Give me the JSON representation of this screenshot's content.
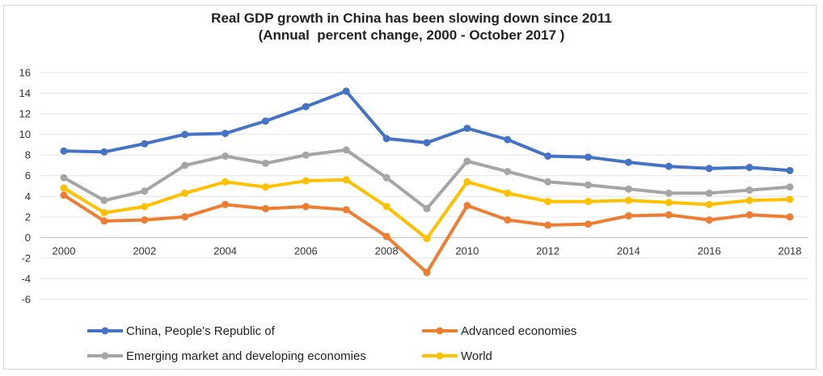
{
  "chart_data": {
    "type": "line",
    "title": "Real GDP growth in China has been slowing down since 2011",
    "subtitle": "(Annual  percent change, 2000 - October 2017 )",
    "xlabel": "",
    "ylabel": "",
    "x": [
      2000,
      2001,
      2002,
      2003,
      2004,
      2005,
      2006,
      2007,
      2008,
      2009,
      2010,
      2011,
      2012,
      2013,
      2014,
      2015,
      2016,
      2017,
      2018
    ],
    "x_tick_labels": [
      "2000",
      "2002",
      "2004",
      "2006",
      "2008",
      "2010",
      "2012",
      "2014",
      "2016",
      "2018"
    ],
    "ylim": [
      -6,
      16
    ],
    "y_tick_labels": [
      "16",
      "14",
      "12",
      "10",
      "8",
      "6",
      "4",
      "2",
      "0",
      "-2",
      "-4",
      "-6"
    ],
    "grid": true,
    "legend_position": "bottom",
    "series": [
      {
        "name": "China, People's Republic of",
        "color": "#4472C4",
        "values": [
          8.4,
          8.3,
          9.1,
          10.0,
          10.1,
          11.3,
          12.7,
          14.2,
          9.6,
          9.2,
          10.6,
          9.5,
          7.9,
          7.8,
          7.3,
          6.9,
          6.7,
          6.8,
          6.5
        ]
      },
      {
        "name": "Advanced economies",
        "color": "#ED7D31",
        "values": [
          4.1,
          1.6,
          1.7,
          2.0,
          3.2,
          2.8,
          3.0,
          2.7,
          0.1,
          -3.4,
          3.1,
          1.7,
          1.2,
          1.3,
          2.1,
          2.2,
          1.7,
          2.2,
          2.0
        ]
      },
      {
        "name": "Emerging market and developing economies",
        "color": "#A5A5A5",
        "values": [
          5.8,
          3.6,
          4.5,
          7.0,
          7.9,
          7.2,
          8.0,
          8.5,
          5.8,
          2.8,
          7.4,
          6.4,
          5.4,
          5.1,
          4.7,
          4.3,
          4.3,
          4.6,
          4.9
        ]
      },
      {
        "name": "World",
        "color": "#FFC000",
        "values": [
          4.8,
          2.4,
          3.0,
          4.3,
          5.4,
          4.9,
          5.5,
          5.6,
          3.0,
          -0.1,
          5.4,
          4.3,
          3.5,
          3.5,
          3.6,
          3.4,
          3.2,
          3.6,
          3.7
        ]
      }
    ]
  }
}
